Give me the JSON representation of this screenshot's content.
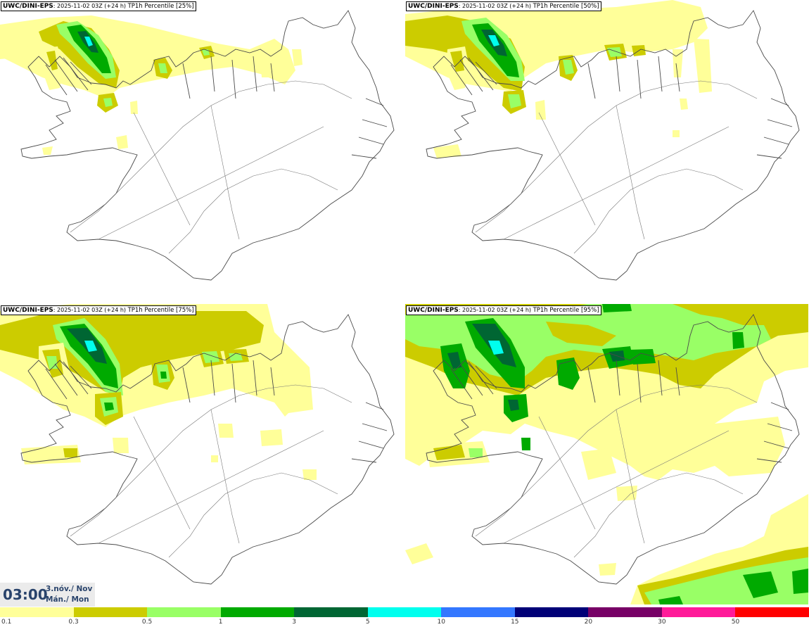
{
  "panels": [
    {
      "model": "UWC/DINI-EPS",
      "run": ": 2025-11-02 03Z (+24 h)",
      "param": "TP1h Percentile [25%]"
    },
    {
      "model": "UWC/DINI-EPS",
      "run": ": 2025-11-02 03Z (+24 h)",
      "param": "TP1h Percentile [50%]"
    },
    {
      "model": "UWC/DINI-EPS",
      "run": ": 2025-11-02 03Z (+24 h)",
      "param": "TP1h Percentile [75%]"
    },
    {
      "model": "UWC/DINI-EPS",
      "run": ": 2025-11-02 03Z (+24 h)",
      "param": "TP1h Percentile [95%]"
    }
  ],
  "time": {
    "clock": "03:00",
    "date_line1": "3.nóv./ Nov",
    "date_line2": "Mán./ Mon"
  },
  "legend": {
    "labels": [
      "0.1",
      "0.3",
      "0.5",
      "1",
      "3",
      "5",
      "10",
      "15",
      "20",
      "30",
      "50"
    ],
    "colors": [
      "#ffff99",
      "#cccc00",
      "#99ff66",
      "#00aa00",
      "#006633",
      "#00ffee",
      "#3377ff",
      "#000077",
      "#770066",
      "#ff1a99",
      "#ff0000"
    ]
  },
  "map_colors": {
    "coast": "#4a4a4a",
    "roads": "#777777"
  }
}
